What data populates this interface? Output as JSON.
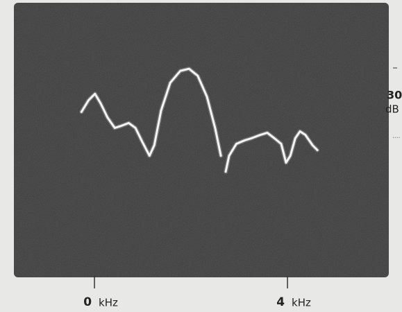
{
  "chart_data": {
    "type": "line",
    "x": [
      -0.27,
      -0.12,
      0.01,
      0.13,
      0.27,
      0.42,
      0.56,
      0.71,
      0.85,
      0.99,
      1.14,
      1.24,
      1.38,
      1.57,
      1.78,
      1.96,
      2.14,
      2.33,
      2.5,
      2.62,
      2.67,
      2.72,
      2.79,
      2.94,
      3.11,
      3.25,
      3.44,
      3.58,
      3.73,
      3.87,
      3.97,
      4.06,
      4.16,
      4.26,
      4.37,
      4.52,
      4.62
    ],
    "series": [
      {
        "color": "#f4f4f4",
        "values": [
          -18.6,
          -13.5,
          -10.8,
          -15,
          -21,
          -25.5,
          -24.6,
          -23.4,
          -25.5,
          -31.5,
          -37.5,
          -33,
          -18,
          -6,
          -0.9,
          0,
          -3,
          -12,
          -25.5,
          -37.5,
          null,
          -44.4,
          -37.5,
          -32.4,
          -30.9,
          -30,
          -28.5,
          -27.6,
          -30,
          -32.4,
          -40.5,
          -37.5,
          -30,
          -27,
          -28.5,
          -33,
          -35.1
        ]
      }
    ],
    "xlim": [
      -1.67,
      6.1
    ],
    "ylim": [
      -90,
      28.5
    ],
    "xticks": [
      0,
      4
    ],
    "x_unit": "kHz",
    "scale_bar": {
      "value": 30,
      "unit": "dB"
    }
  }
}
